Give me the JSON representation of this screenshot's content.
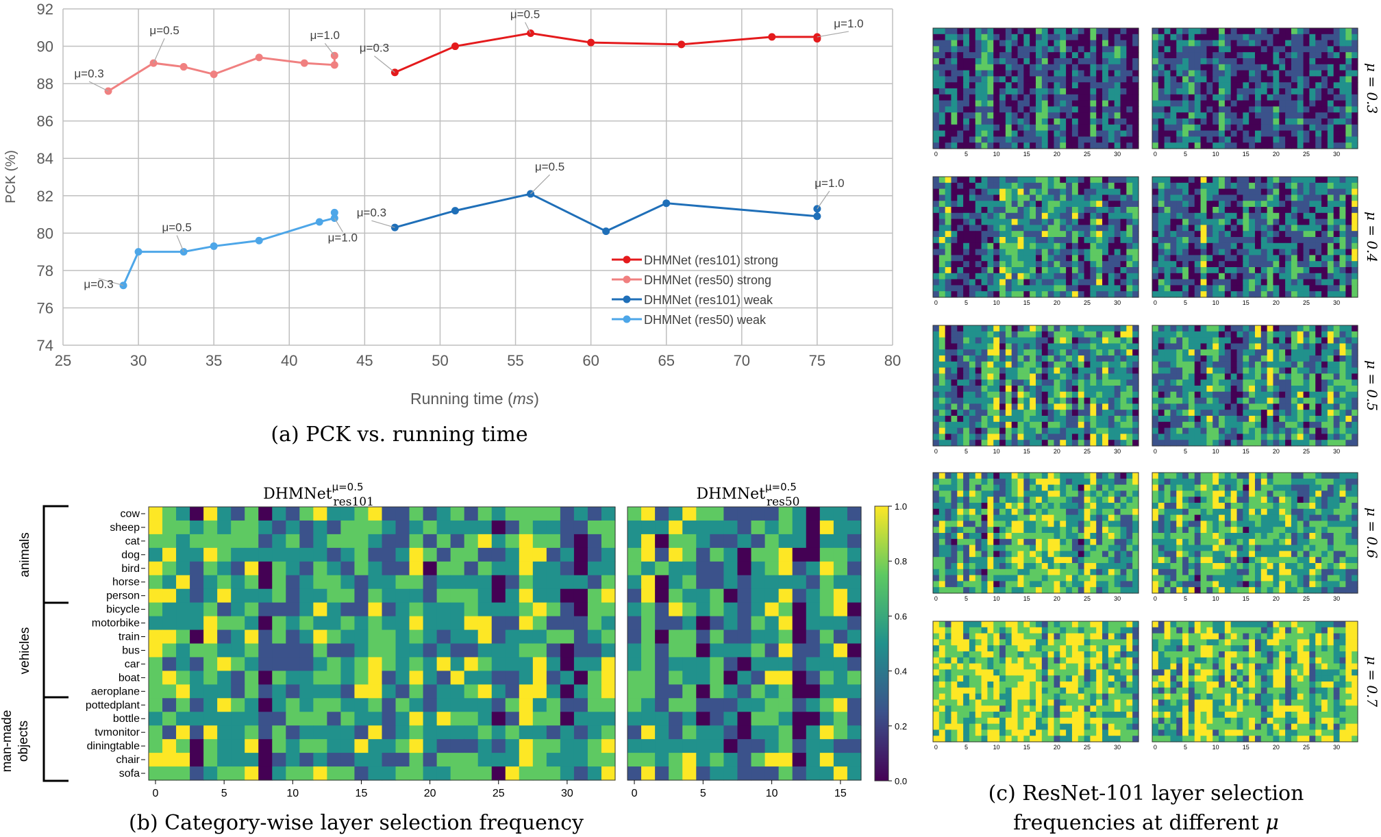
{
  "panel_a": {
    "caption": "(a) PCK vs. running time",
    "chart_data": {
      "type": "line",
      "xlabel": "Running time (ms)",
      "xlabel_main": "Running time (",
      "xlabel_unit": "ms",
      "xlabel_close": ")",
      "ylabel": "PCK (%)",
      "xlim": [
        25,
        80
      ],
      "ylim": [
        74,
        92
      ],
      "xticks": [
        25,
        30,
        35,
        40,
        45,
        50,
        55,
        60,
        65,
        70,
        75,
        80
      ],
      "yticks": [
        74,
        76,
        78,
        80,
        82,
        84,
        86,
        88,
        90,
        92
      ],
      "grid": true,
      "legend_position": "center-right",
      "series": [
        {
          "name": "DHMNet (res101) strong",
          "color": "#e41a1c",
          "x": [
            47,
            51,
            56,
            60,
            66,
            72,
            75,
            75
          ],
          "y": [
            88.6,
            90.0,
            90.7,
            90.2,
            90.1,
            90.5,
            90.5,
            90.4
          ]
        },
        {
          "name": "DHMNet (res50) strong",
          "color": "#f08080",
          "x": [
            28,
            31,
            33,
            35,
            38,
            41,
            43,
            43
          ],
          "y": [
            87.6,
            89.1,
            88.9,
            88.5,
            89.4,
            89.1,
            89.0,
            89.5
          ]
        },
        {
          "name": "DHMNet (res101) weak",
          "color": "#1f6fb8",
          "x": [
            47,
            51,
            56,
            61,
            65,
            75,
            75
          ],
          "y": [
            80.3,
            81.2,
            82.1,
            80.1,
            81.6,
            80.9,
            81.3
          ]
        },
        {
          "name": "DHMNet (res50) weak",
          "color": "#4da6e8",
          "x": [
            29,
            30,
            33,
            35,
            38,
            42,
            43,
            43
          ],
          "y": [
            77.2,
            79.0,
            79.0,
            79.3,
            79.6,
            80.6,
            80.8,
            81.1
          ]
        }
      ],
      "annotations": [
        {
          "text": "μ=0.3",
          "x": 28,
          "y": 87.6
        },
        {
          "text": "μ=0.5",
          "x": 31,
          "y": 89.1
        },
        {
          "text": "μ=1.0",
          "x": 43,
          "y": 89.5
        },
        {
          "text": "μ=0.3",
          "x": 47,
          "y": 88.6
        },
        {
          "text": "μ=0.5",
          "x": 56,
          "y": 90.7
        },
        {
          "text": "μ=1.0",
          "x": 75,
          "y": 90.5
        },
        {
          "text": "μ=0.3",
          "x": 29,
          "y": 77.2
        },
        {
          "text": "μ=0.5",
          "x": 33,
          "y": 79.0
        },
        {
          "text": "μ=1.0",
          "x": 43,
          "y": 80.8
        },
        {
          "text": "μ=0.3",
          "x": 47,
          "y": 80.3
        },
        {
          "text": "μ=0.5",
          "x": 56,
          "y": 82.1
        },
        {
          "text": "μ=1.0",
          "x": 75,
          "y": 81.3
        }
      ]
    }
  },
  "panel_b": {
    "caption": "(b) Category-wise layer selection frequency",
    "chart_data": [
      {
        "type": "heatmap",
        "title": "DHMNet res101 μ=0.5",
        "title_base": "DHMNet",
        "title_sup": "μ=0.5",
        "title_sub": "res101",
        "rows": [
          "cow",
          "sheep",
          "cat",
          "dog",
          "bird",
          "horse",
          "person",
          "bicycle",
          "motorbike",
          "train",
          "bus",
          "car",
          "boat",
          "aeroplane",
          "pottedplant",
          "bottle",
          "tvmonitor",
          "diningtable",
          "chair",
          "sofa"
        ],
        "columns": 34,
        "xticks": [
          0,
          5,
          10,
          15,
          20,
          25,
          30
        ]
      },
      {
        "type": "heatmap",
        "title": "DHMNet res50 μ=0.5",
        "title_base": "DHMNet",
        "title_sup": "μ=0.5",
        "title_sub": "res50",
        "rows": [
          "cow",
          "sheep",
          "cat",
          "dog",
          "bird",
          "horse",
          "person",
          "bicycle",
          "motorbike",
          "train",
          "bus",
          "car",
          "boat",
          "aeroplane",
          "pottedplant",
          "bottle",
          "tvmonitor",
          "diningtable",
          "chair",
          "sofa"
        ],
        "columns": 17,
        "xticks": [
          0,
          5,
          10,
          15
        ]
      }
    ],
    "groups": [
      {
        "label": "animals",
        "rows": [
          0,
          6
        ]
      },
      {
        "label": "vehicles",
        "rows": [
          7,
          13
        ]
      },
      {
        "label_line1": "man-made",
        "label_line2": "objects",
        "rows": [
          14,
          19
        ]
      }
    ],
    "colorbar": {
      "ticks": [
        "0.0",
        "0.2",
        "0.4",
        "0.6",
        "0.8",
        "1.0"
      ],
      "range": [
        0,
        1
      ]
    }
  },
  "panel_c": {
    "caption_line1": "(c) ResNet-101 layer selection",
    "caption_line2": "frequencies at different ",
    "caption_mu": "μ",
    "mu_labels": [
      "μ = 0.3",
      "μ = 0.4",
      "μ = 0.5",
      "μ = 0.6",
      "μ = 0.7"
    ],
    "mu_values": [
      0.3,
      0.4,
      0.5,
      0.6,
      0.7
    ],
    "xticks": [
      0,
      5,
      10,
      15,
      20,
      25,
      30
    ],
    "columns": 34,
    "rows": 20
  },
  "colormap": [
    "#440154",
    "#3b528b",
    "#21918c",
    "#5ec962",
    "#fde725"
  ]
}
